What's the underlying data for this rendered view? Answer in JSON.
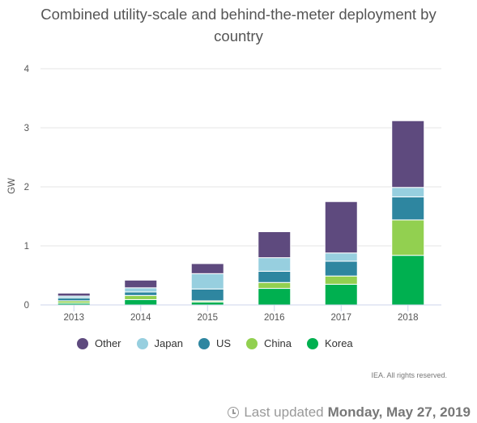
{
  "chart_data": {
    "type": "bar",
    "stacked": true,
    "title": "Combined utility-scale and behind-the-meter deployment by country",
    "title_lines": [
      "Combined utility-scale and behind-the-meter deployment by",
      "country"
    ],
    "xlabel": "",
    "ylabel": "GW",
    "ylim": [
      0,
      4
    ],
    "yticks": [
      "0",
      "1",
      "2",
      "3",
      "4"
    ],
    "grid": true,
    "legend_position": "bottom",
    "categories": [
      "2013",
      "2014",
      "2015",
      "2016",
      "2017",
      "2018"
    ],
    "series": [
      {
        "name": "Korea",
        "color": "#00b050",
        "values": [
          0.03,
          0.09,
          0.05,
          0.28,
          0.35,
          0.84
        ]
      },
      {
        "name": "China",
        "color": "#92d050",
        "values": [
          0.04,
          0.07,
          0.02,
          0.1,
          0.14,
          0.6
        ]
      },
      {
        "name": "US",
        "color": "#2e86a0",
        "values": [
          0.05,
          0.06,
          0.2,
          0.19,
          0.25,
          0.39
        ]
      },
      {
        "name": "Japan",
        "color": "#97cfdf",
        "values": [
          0.03,
          0.07,
          0.26,
          0.23,
          0.14,
          0.16
        ]
      },
      {
        "name": "Other",
        "color": "#5e4a7e",
        "values": [
          0.05,
          0.13,
          0.17,
          0.44,
          0.87,
          1.13
        ]
      }
    ],
    "legend_order": [
      "Other",
      "Japan",
      "US",
      "China",
      "Korea"
    ]
  },
  "credits": "IEA. All rights reserved.",
  "last_updated": {
    "prefix": "Last updated",
    "date": "Monday, May 27, 2019"
  },
  "icons": {
    "clock": "clock-icon"
  }
}
